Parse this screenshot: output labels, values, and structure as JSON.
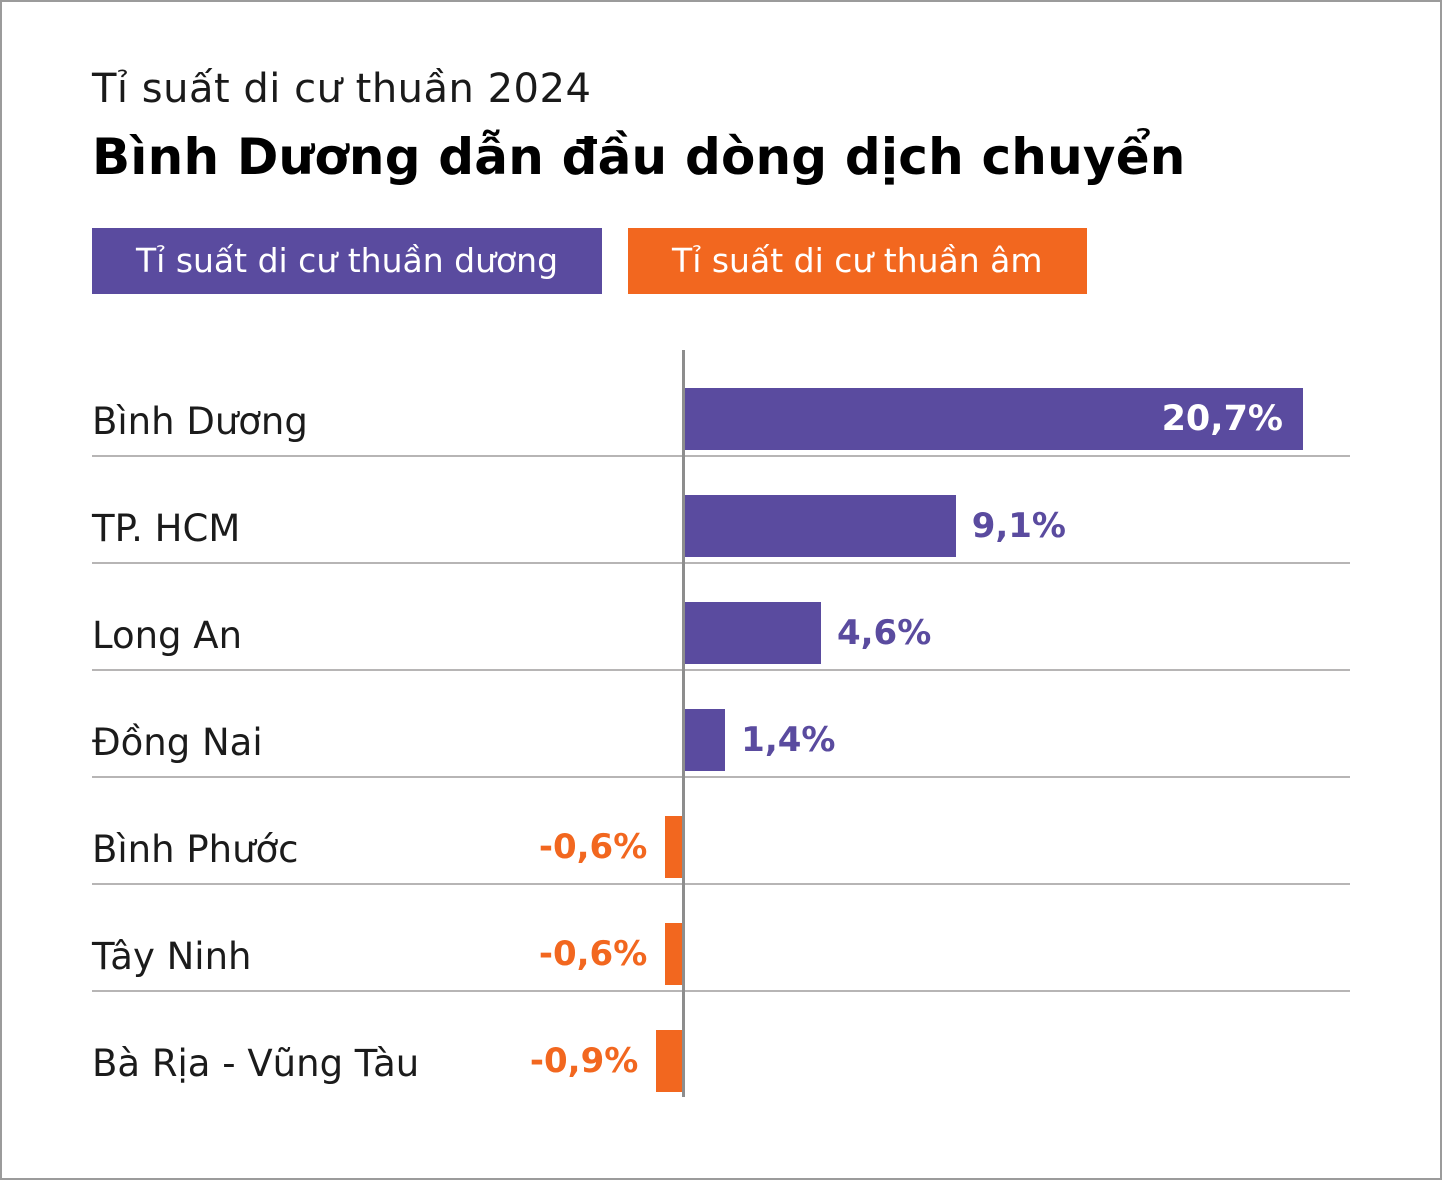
{
  "header": {
    "title": "Tỉ suất di cư thuần 2024",
    "subtitle": "Bình Dương dẫn đầu dòng dịch chuyển"
  },
  "legend": {
    "positive": {
      "label": "Tỉ suất di cư thuần dương",
      "color": "#5a4b9f"
    },
    "negative": {
      "label": "Tỉ suất di cư thuần âm",
      "color": "#f2671f"
    }
  },
  "chart_data": {
    "type": "bar",
    "orientation": "horizontal",
    "title": "Tỉ suất di cư thuần 2024",
    "subtitle": "Bình Dương dẫn đầu dòng dịch chuyển",
    "categories": [
      "Bình Dương",
      "TP. HCM",
      "Long An",
      "Đồng Nai",
      "Bình Phước",
      "Tây Ninh",
      "Bà Rịa - Vũng Tàu"
    ],
    "values": [
      20.7,
      9.1,
      4.6,
      1.4,
      -0.6,
      -0.6,
      -0.9
    ],
    "value_labels": [
      "20,7%",
      "9,1%",
      "4,6%",
      "1,4%",
      "-0,6%",
      "-0,6%",
      "-0,9%"
    ],
    "positive_color": "#5a4b9f",
    "negative_color": "#f2671f",
    "xlim": [
      -2,
      21
    ],
    "grid": "horizontal row separators",
    "legend_position": "top",
    "legend_entries": [
      "Tỉ suất di cư thuần dương",
      "Tỉ suất di cư thuần âm"
    ]
  }
}
